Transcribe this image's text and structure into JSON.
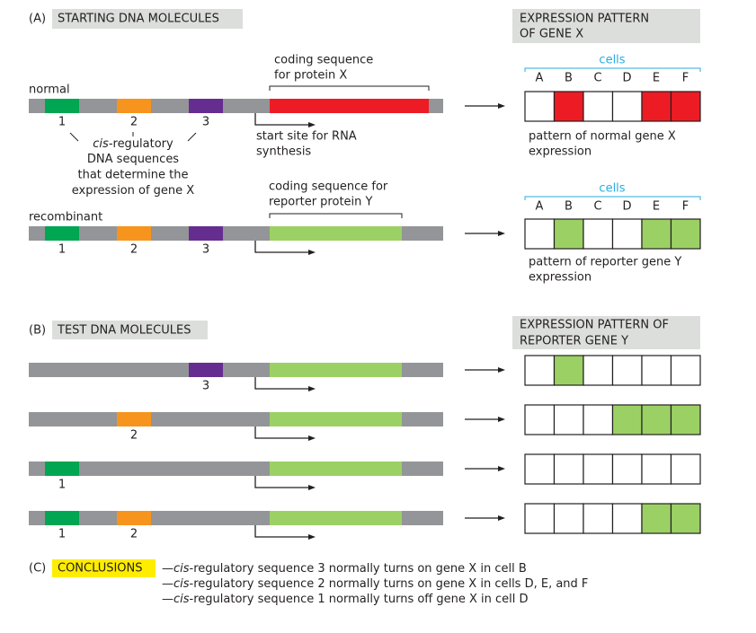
{
  "panel_a": {
    "label": "(A)",
    "title": "STARTING DNA MOLECULES",
    "expression_title": [
      "EXPRESSION PATTERN",
      "OF GENE X"
    ],
    "normal": {
      "name": "normal",
      "coding_label": [
        "coding sequence",
        "for protein X"
      ],
      "element_numbers": [
        "1",
        "2",
        "3"
      ],
      "start_site_label": [
        "start site for RNA",
        "synthesis"
      ],
      "cells_label": "cells",
      "cells": [
        "A",
        "B",
        "C",
        "D",
        "E",
        "F"
      ],
      "pattern_label": [
        "pattern of normal gene X",
        "expression"
      ]
    },
    "cis_label": {
      "italic": "cis",
      "lines": [
        "-regulatory",
        "DNA sequences",
        "that determine the",
        "expression of gene X"
      ]
    },
    "recombinant": {
      "name": "recombinant",
      "coding_label": [
        "coding sequence for",
        "reporter protein Y"
      ],
      "element_numbers": [
        "1",
        "2",
        "3"
      ],
      "cells_label": "cells",
      "cells": [
        "A",
        "B",
        "C",
        "D",
        "E",
        "F"
      ],
      "pattern_label": [
        "pattern of reporter gene Y",
        "expression"
      ]
    }
  },
  "panel_b": {
    "label": "(B)",
    "title": "TEST DNA MOLECULES",
    "expression_title": [
      "EXPRESSION PATTERN OF",
      "REPORTER GENE Y"
    ],
    "rows": [
      {
        "element_numbers": [
          "3"
        ]
      },
      {
        "element_numbers": [
          "2"
        ]
      },
      {
        "element_numbers": [
          "1"
        ]
      },
      {
        "element_numbers": [
          "1",
          "2"
        ]
      }
    ]
  },
  "panel_c": {
    "label": "(C)",
    "title": "CONCLUSIONS",
    "lines": [
      {
        "prefix": "—",
        "italic": "cis",
        "text": "-regulatory sequence 3 normally turns on gene X in cell B"
      },
      {
        "prefix": "—",
        "italic": "cis",
        "text": "-regulatory sequence 2 normally turns on gene X in cells D, E, and F"
      },
      {
        "prefix": "—",
        "italic": "cis",
        "text": "-regulatory sequence 1 normally turns off gene X in cell D"
      }
    ]
  }
}
